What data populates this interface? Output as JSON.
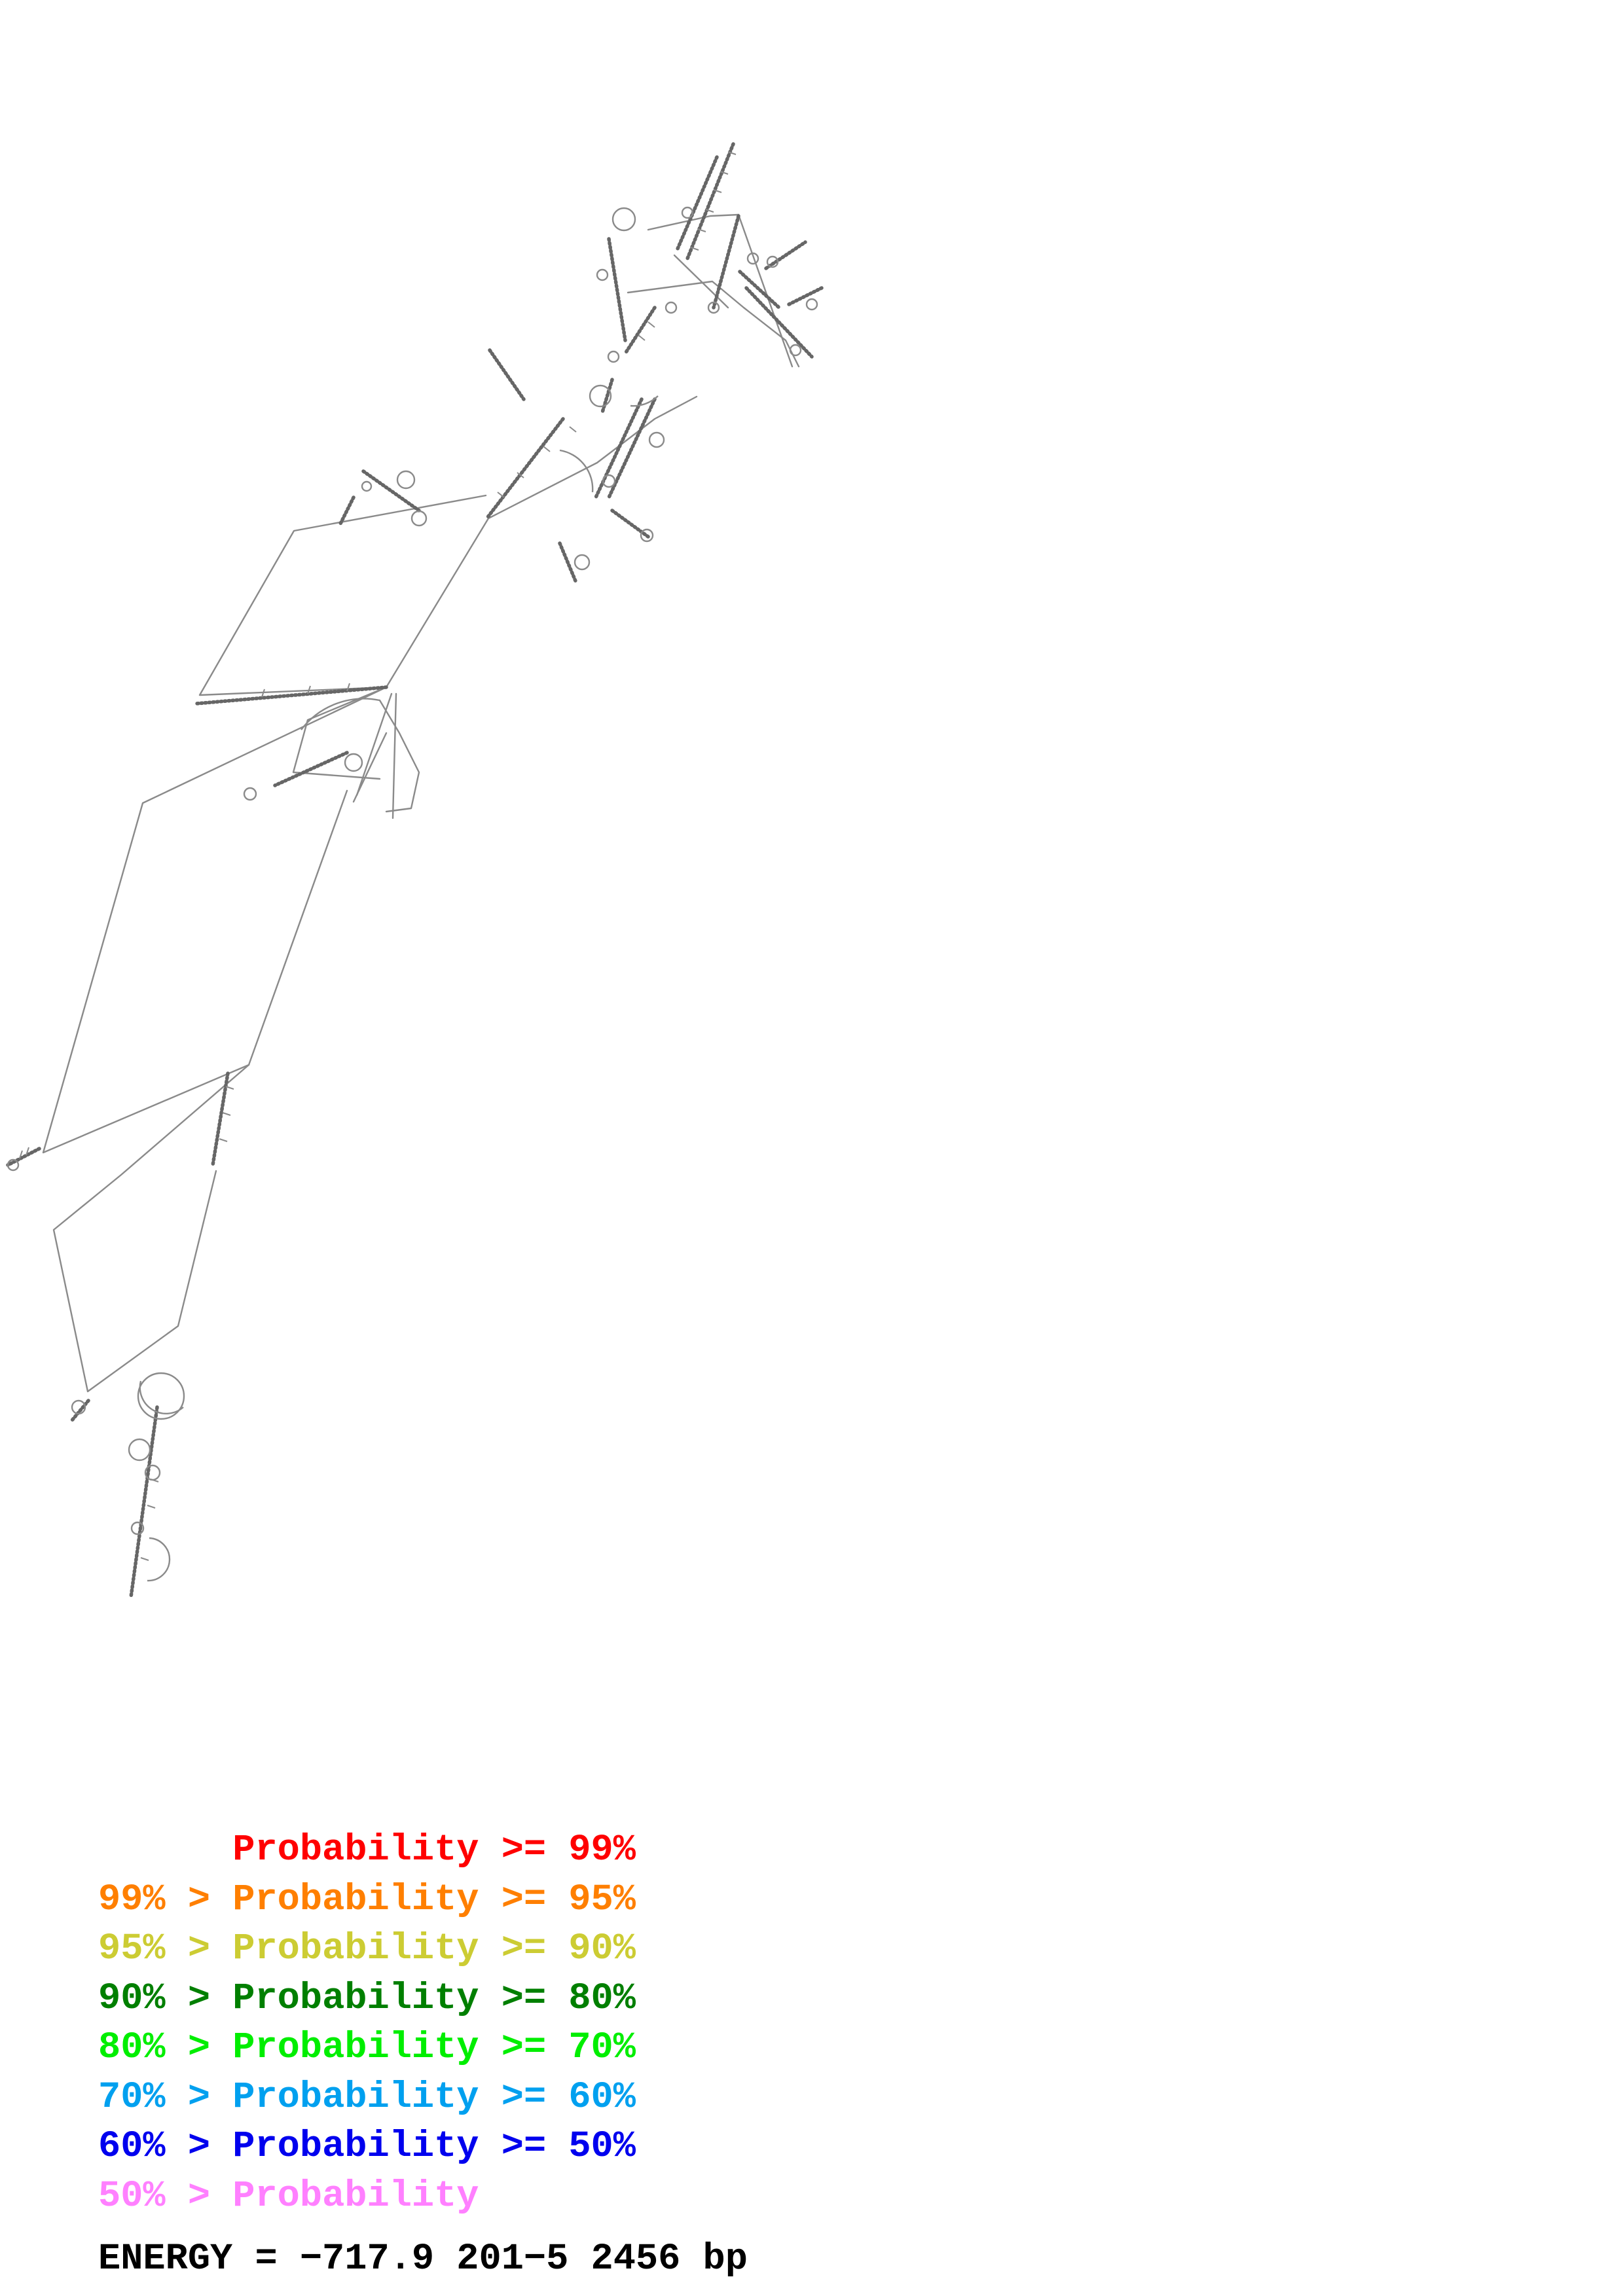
{
  "legend": [
    {
      "prefix": "",
      "label": "Probability",
      "suffix": ">= 99%",
      "color": "#ff0000"
    },
    {
      "prefix": "99% >",
      "label": "Probability",
      "suffix": ">= 95%",
      "color": "#ff7f00"
    },
    {
      "prefix": "95% >",
      "label": "Probability",
      "suffix": ">= 90%",
      "color": "#cccc33"
    },
    {
      "prefix": "90% >",
      "label": "Probability",
      "suffix": ">= 80%",
      "color": "#007f00"
    },
    {
      "prefix": "80% >",
      "label": "Probability",
      "suffix": ">= 70%",
      "color": "#00ee00"
    },
    {
      "prefix": "70% >",
      "label": "Probability",
      "suffix": ">= 60%",
      "color": "#00a0ef"
    },
    {
      "prefix": "60% >",
      "label": "Probability",
      "suffix": ">= 50%",
      "color": "#0000ee"
    },
    {
      "prefix": "50% >",
      "label": "Probability",
      "suffix": "",
      "color": "#ff80ff"
    }
  ],
  "footer": {
    "energy": "ENERGY = −717.9",
    "range": "201−5",
    "length": "2456 bp"
  },
  "colors": {
    "backbone": "#8a8a8a",
    "text": "#000000"
  }
}
